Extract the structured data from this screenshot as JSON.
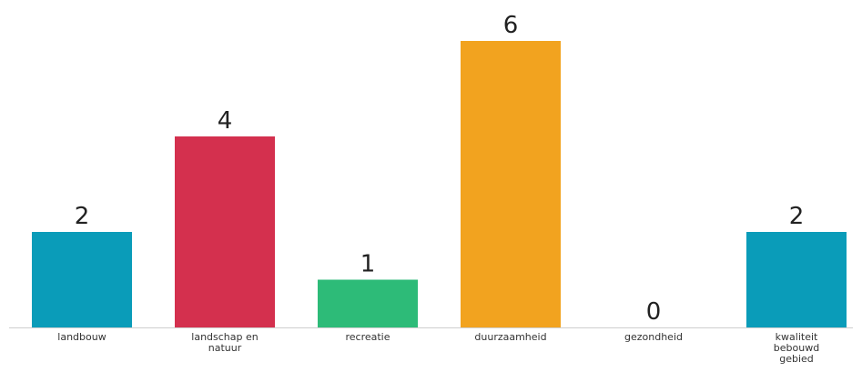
{
  "chart_data": {
    "type": "bar",
    "title": "",
    "xlabel": "",
    "ylabel": "",
    "ylim": [
      0,
      6
    ],
    "grid": false,
    "categories": [
      [
        "landbouw"
      ],
      [
        "landschap en",
        "natuur"
      ],
      [
        "recreatie"
      ],
      [
        "duurzaamheid"
      ],
      [
        "gezondheid"
      ],
      [
        "kwaliteit",
        "bebouwd",
        "gebied"
      ]
    ],
    "values": [
      2,
      4,
      1,
      6,
      0,
      2
    ],
    "colors": [
      "#0a9cb9",
      "#d4304e",
      "#2dbb78",
      "#f2a31f",
      "#cccccc",
      "#0a9cb9"
    ],
    "baseline_color": "#cfcfcf"
  }
}
